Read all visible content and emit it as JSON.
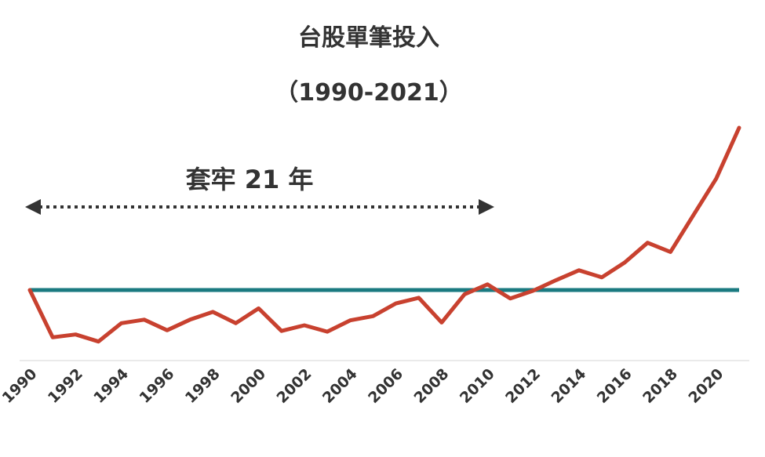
{
  "chart_data": {
    "type": "line",
    "title": "台股單筆投入",
    "subtitle": "（1990-2021）",
    "annotation": "套牢 21 年",
    "categories": [
      "1990",
      null,
      "1992",
      null,
      "1994",
      null,
      "1996",
      null,
      "1998",
      null,
      "2000",
      null,
      "2002",
      null,
      "2004",
      null,
      "2006",
      null,
      "2008",
      null,
      "2010",
      null,
      "2012",
      null,
      "2014",
      null,
      "2016",
      null,
      "2018",
      null,
      "2020",
      null
    ],
    "series": [
      {
        "color": "#c8412f",
        "values": [
          100,
          33,
          37,
          27,
          53,
          58,
          43,
          58,
          69,
          53,
          74,
          42,
          50,
          41,
          57,
          63,
          81,
          89,
          54,
          94,
          108,
          88,
          99,
          114,
          128,
          118,
          139,
          167,
          154,
          206,
          258,
          330
        ]
      }
    ],
    "reference_line": {
      "value": 100,
      "color": "#1a7a80"
    }
  }
}
